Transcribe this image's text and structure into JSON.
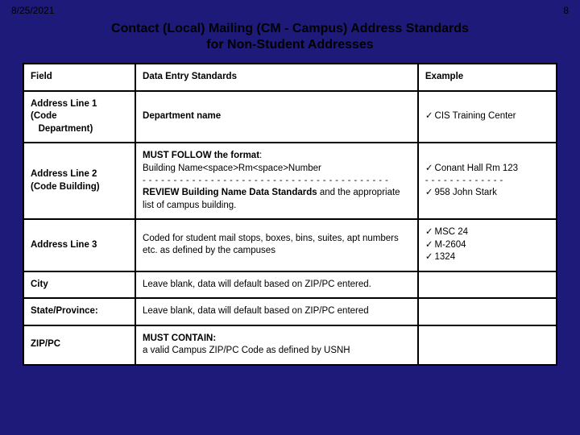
{
  "header": {
    "date": "8/25/2021",
    "page": "8"
  },
  "title_line1": "Contact (Local) Mailing (CM - Campus) Address Standards",
  "title_line2": "for Non-Student Addresses",
  "columns": {
    "field": "Field",
    "std": "Data Entry Standards",
    "example": "Example"
  },
  "rows": {
    "r1": {
      "field_html": "Address Line 1<br>(Code<br>&nbsp;&nbsp;&nbsp;Department)",
      "std_html": "<b>Department name</b>",
      "ex_html": "<span class='check'>✓</span>CIS Training Center"
    },
    "r2": {
      "field_html": "Address Line 2<br>(Code Building)",
      "std_html": "<b>MUST FOLLOW the format</b>:<br>Building Name&lt;space&gt;Rm&lt;space&gt;Number<br><span class='dashline'>- - - - - - - - - - - - - - - - - - - - - - - - - - - - - - - - - - - - - - - -</span><b>REVIEW Building Name Data Standards</b> and the appropriate list of campus building.",
      "ex_html": "<span class='check'>✓</span>Conant Hall Rm 123<br><span class='dashline'>- - - - - - - - - - - - -</span><span class='check'>✓</span>958 John Stark"
    },
    "r3": {
      "field_html": "Address Line 3",
      "std_html": "Coded for student mail stops, boxes, bins, suites, apt numbers etc. as defined by the campuses",
      "ex_html": "<span class='check'>✓</span>MSC 24<br><span class='check'>✓</span>M-2604<br><span class='check'>✓</span>1324"
    },
    "r4": {
      "field_html": "City",
      "std_html": "Leave blank, data will default based on ZIP/PC entered.",
      "ex_html": ""
    },
    "r5": {
      "field_html": "State/Province:",
      "std_html": "Leave blank, data will default based on ZIP/PC entered",
      "ex_html": ""
    },
    "r6": {
      "field_html": "ZIP/PC",
      "std_html": "<b>MUST CONTAIN:</b><br>a valid Campus ZIP/PC Code as defined by USNH",
      "ex_html": ""
    }
  }
}
